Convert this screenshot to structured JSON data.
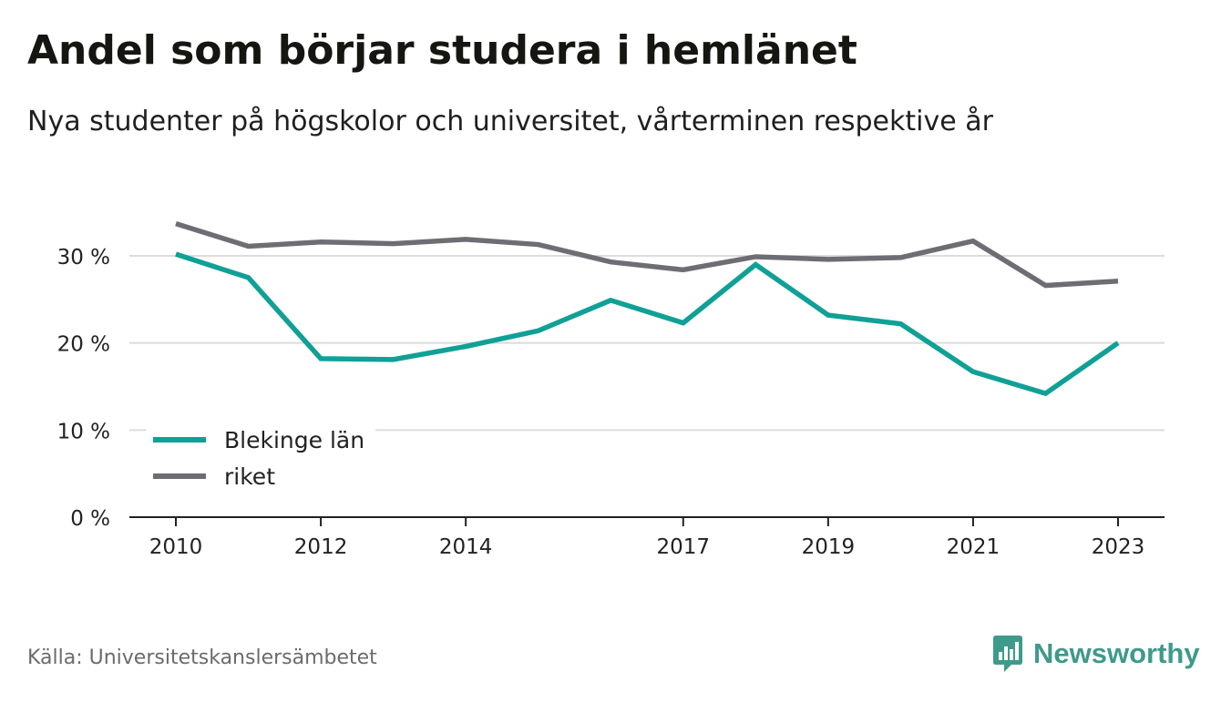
{
  "title": "Andel som börjar studera i hemlänet",
  "subtitle": "Nya studenter på högskolor och universitet, vårterminen respektive år",
  "source": "Källa: Universitetskanslersämbetet",
  "brand": {
    "name": "Newsworthy",
    "icon": "newsworthy-logo-icon",
    "color": "#3e9a8a"
  },
  "chart_data": {
    "type": "line",
    "x": [
      2010,
      2011,
      2012,
      2013,
      2014,
      2015,
      2016,
      2017,
      2018,
      2019,
      2020,
      2021,
      2022,
      2023
    ],
    "x_ticks": [
      2010,
      2012,
      2014,
      2017,
      2019,
      2021,
      2023
    ],
    "y_ticks": [
      0,
      10,
      20,
      30
    ],
    "y_tick_labels": [
      "0 %",
      "10 %",
      "20 %",
      "30 %"
    ],
    "ylim": [
      0,
      36
    ],
    "grid": true,
    "legend_position": "bottom-left",
    "series": [
      {
        "name": "Blekinge län",
        "color": "#10a096",
        "values": [
          30.2,
          27.5,
          18.2,
          18.1,
          19.6,
          21.4,
          24.9,
          22.3,
          29.0,
          23.2,
          22.2,
          16.7,
          14.2,
          20.0
        ]
      },
      {
        "name": "riket",
        "color": "#6e6d74",
        "values": [
          33.7,
          31.1,
          31.6,
          31.4,
          31.9,
          31.3,
          29.3,
          28.4,
          29.9,
          29.6,
          29.8,
          31.7,
          26.6,
          27.1
        ]
      }
    ],
    "xlabel": "",
    "ylabel": ""
  }
}
